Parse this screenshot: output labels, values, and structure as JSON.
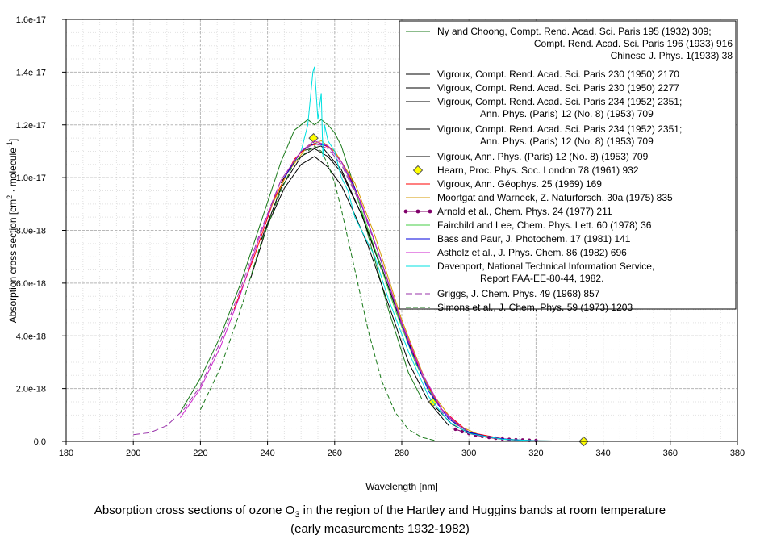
{
  "chart_data": {
    "type": "line",
    "xlabel": "Wavelength [nm]",
    "ylabel": {
      "base": "Absorption cross section [cm",
      "sup1": "2",
      "mid": " · molecule",
      "sup2": "-1",
      "end": "]"
    },
    "xlim": [
      180,
      380
    ],
    "ylim": [
      0,
      1.6e-17
    ],
    "x_ticks": [
      180,
      200,
      220,
      240,
      260,
      280,
      300,
      320,
      340,
      360,
      380
    ],
    "x_tick_labels": [
      "180",
      "200",
      "220",
      "240",
      "260",
      "280",
      "300",
      "320",
      "340",
      "360",
      "380"
    ],
    "y_ticks": [
      0,
      2e-18,
      4e-18,
      6e-18,
      8e-18,
      1e-17,
      1.2e-17,
      1.4e-17,
      1.6e-17
    ],
    "y_tick_labels": [
      "0.0",
      "2.0e-18",
      "4.0e-18",
      "6.0e-18",
      "8.0e-18",
      "1.0e-17",
      "1.2e-17",
      "1.4e-17",
      "1.6e-17"
    ],
    "grid": true,
    "legend_position": "top-right",
    "series": [
      {
        "name": "Ny and Choong",
        "legend": [
          "Ny and Choong, Compt. Rend. Acad. Sci. Paris 195 (1932) 309;",
          "Compt. Rend. Acad. Sci. Paris 196 (1933) 916",
          "Chinese J. Phys. 1(1933) 38"
        ],
        "color": "#1a7a1a",
        "dash": "",
        "marker": "none",
        "x": [
          214,
          220,
          226,
          232,
          238,
          244,
          248,
          252,
          254,
          256,
          258,
          260,
          262,
          266,
          270,
          276,
          282,
          286
        ],
        "y": [
          1.1e-18,
          2.4e-18,
          4e-18,
          6e-18,
          8.3e-18,
          1.06e-17,
          1.18e-17,
          1.22e-17,
          1.2e-17,
          1.22e-17,
          1.2e-17,
          1.17e-17,
          1.12e-17,
          9.6e-18,
          7.8e-18,
          5e-18,
          2.6e-18,
          1.6e-18
        ]
      },
      {
        "name": "Vigroux 1950a",
        "legend": [
          "Vigroux, Compt. Rend. Acad. Sci. Paris 230 (1950) 2170"
        ],
        "color": "#000000",
        "dash": "",
        "marker": "none",
        "x": [
          235,
          240,
          245,
          250,
          254,
          258,
          262,
          266,
          270,
          276,
          282,
          288,
          294
        ],
        "y": [
          6.2e-18,
          8.2e-18,
          9.6e-18,
          1.05e-17,
          1.08e-17,
          1.04e-17,
          9.7e-18,
          8.6e-18,
          7.4e-18,
          5.2e-18,
          3e-18,
          1.5e-18,
          6e-19
        ]
      },
      {
        "name": "Vigroux 1950b",
        "legend": [
          "Vigroux, Compt. Rend. Acad. Sci. Paris 230 (1950) 2277"
        ],
        "color": "#000000",
        "dash": "",
        "marker": "none",
        "x": [
          238,
          244,
          250,
          254,
          258,
          262,
          268,
          274,
          280,
          286,
          292,
          298
        ],
        "y": [
          7.6e-18,
          9.6e-18,
          1.08e-17,
          1.11e-17,
          1.08e-17,
          1.02e-17,
          8.6e-18,
          6.6e-18,
          4.4e-18,
          2.5e-18,
          1.2e-18,
          5e-19
        ]
      },
      {
        "name": "Vigroux 1952a",
        "legend": [
          "Vigroux, Compt. Rend. Acad. Sci. Paris 234 (1952) 2351;",
          "Ann. Phys. (Paris) 12 (No. 8) (1953) 709"
        ],
        "color": "#000000",
        "dash": "",
        "marker": "none",
        "x": [
          290,
          295,
          300,
          305,
          310,
          315,
          320
        ],
        "y": [
          1.3e-18,
          6.5e-19,
          3.2e-19,
          1.6e-19,
          8e-20,
          4e-20,
          2e-20
        ]
      },
      {
        "name": "Vigroux 1952b",
        "legend": [
          "Vigroux, Compt. Rend. Acad. Sci. Paris 234 (1952) 2351;",
          "Ann. Phys. (Paris) 12 (No. 8) (1953) 709"
        ],
        "color": "#000000",
        "dash": "",
        "marker": "none",
        "x": [
          244,
          250,
          256,
          262,
          268,
          274
        ],
        "y": [
          9.8e-18,
          1.1e-17,
          1.12e-17,
          1.03e-17,
          8.6e-18,
          6.5e-18
        ]
      },
      {
        "name": "Vigroux 1953",
        "legend": [
          "Vigroux, Ann. Phys. (Paris) 12 (No. 8) (1953) 709"
        ],
        "color": "#000000",
        "dash": "",
        "marker": "none",
        "x": [
          300,
          305,
          310,
          315,
          320,
          330,
          340,
          350
        ],
        "y": [
          3.2e-19,
          1.7e-19,
          9e-20,
          4.5e-20,
          2.3e-20,
          6e-21,
          1.5e-21,
          4e-22
        ]
      },
      {
        "name": "Hearn",
        "legend": [
          "Hearn, Proc. Phys. Soc. London 78 (1961) 932"
        ],
        "color": "#ffff00",
        "stroke": "#555555",
        "dash": "",
        "marker": "diamond",
        "line": false,
        "x": [
          253.7,
          289.4,
          334.2
        ],
        "y": [
          1.15e-17,
          1.5e-18,
          0
        ]
      },
      {
        "name": "Vigroux 1969",
        "legend": [
          "Vigroux, Ann. Géophys. 25 (1969) 169"
        ],
        "color": "#ff0000",
        "dash": "",
        "marker": "none",
        "x": [
          230,
          236,
          242,
          248,
          252,
          256,
          260,
          264,
          268,
          274,
          280,
          286,
          292,
          300,
          310
        ],
        "y": [
          5e-18,
          7e-18,
          9.2e-18,
          1.07e-17,
          1.12e-17,
          1.13e-17,
          1.1e-17,
          1.02e-17,
          9e-18,
          6.8e-18,
          4.5e-18,
          2.5e-18,
          1.2e-18,
          3.5e-19,
          1e-19
        ]
      },
      {
        "name": "Moortgat and Warneck",
        "legend": [
          "Moortgat and Warneck, Z. Naturforsch. 30a (1975) 835"
        ],
        "color": "#d49a00",
        "dash": "",
        "marker": "none",
        "x": [
          240,
          246,
          252,
          256,
          260,
          266,
          272,
          280,
          288,
          296,
          304
        ],
        "y": [
          8.6e-18,
          1.02e-17,
          1.12e-17,
          1.14e-17,
          1.1e-17,
          9.8e-18,
          7.8e-18,
          4.6e-18,
          2e-18,
          6.5e-19,
          2e-19
        ]
      },
      {
        "name": "Arnold et al.",
        "legend": [
          "Arnold et al., Chem. Phys. 24 (1977) 211"
        ],
        "color": "#80006a",
        "dash": "",
        "marker": "dot",
        "x": [
          296,
          298,
          300,
          302,
          304,
          306,
          308,
          310,
          312,
          314,
          316,
          318,
          320
        ],
        "y": [
          4.6e-19,
          3.7e-19,
          3e-19,
          2.4e-19,
          1.9e-19,
          1.5e-19,
          1.2e-19,
          9.5e-20,
          7.5e-20,
          6e-20,
          5e-20,
          4e-20,
          3.2e-20
        ]
      },
      {
        "name": "Fairchild and Lee",
        "legend": [
          "Fairchild and Lee, Chem. Phys. Lett. 60 (1978) 36"
        ],
        "color": "#44cc44",
        "dash": "",
        "marker": "none",
        "x": [
          250,
          254,
          258,
          262,
          266,
          272,
          278,
          284,
          290
        ],
        "y": [
          1.1e-17,
          1.14e-17,
          1.12e-17,
          1.06e-17,
          9.5e-18,
          7.3e-18,
          5e-18,
          3e-18,
          1.5e-18
        ]
      },
      {
        "name": "Bass and Paur",
        "legend": [
          "Bass and Paur, J. Photochem. 17 (1981) 141"
        ],
        "color": "#0000dd",
        "dash": "",
        "marker": "none",
        "x": [
          245,
          250,
          254,
          258,
          262,
          266,
          270,
          276,
          282,
          288,
          294,
          300,
          306,
          312,
          318
        ],
        "y": [
          1e-17,
          1.1e-17,
          1.13e-17,
          1.12e-17,
          1.06e-17,
          9.6e-18,
          8.3e-18,
          6e-18,
          3.7e-18,
          1.9e-18,
          8.5e-19,
          3.5e-19,
          1.6e-19,
          7e-20,
          3e-20
        ]
      },
      {
        "name": "Astholz et al.",
        "legend": [
          "Astholz et al., J. Phys. Chem. 86 (1982) 696"
        ],
        "color": "#cc22cc",
        "dash": "",
        "marker": "none",
        "x": [
          214,
          220,
          226,
          232,
          238,
          244,
          250,
          254,
          258,
          262,
          268,
          274,
          280,
          286,
          292,
          298
        ],
        "y": [
          9e-19,
          2e-18,
          3.6e-18,
          5.6e-18,
          7.9e-18,
          9.9e-18,
          1.1e-17,
          1.14e-17,
          1.12e-17,
          1.06e-17,
          9e-18,
          6.8e-18,
          4.5e-18,
          2.6e-18,
          1.2e-18,
          5e-19
        ]
      },
      {
        "name": "Davenport",
        "legend": [
          "Davenport, National Technical Information Service,",
          "Report FAA-EE-80-44, 1982."
        ],
        "color": "#00e0e0",
        "dash": "",
        "marker": "none",
        "x": [
          250,
          252,
          253.5,
          254,
          255,
          256,
          256.5,
          257,
          258,
          260,
          262,
          264,
          266,
          268,
          270,
          272,
          276,
          282,
          288,
          294,
          300,
          310,
          320,
          330,
          340,
          350,
          360,
          370
        ],
        "y": [
          1.1e-17,
          1.2e-17,
          1.4e-17,
          1.42e-17,
          1.22e-17,
          1.32e-17,
          1.08e-17,
          1.2e-17,
          1.14e-17,
          1.1e-17,
          1e-17,
          9.5e-18,
          8.5e-18,
          8e-18,
          7.5e-18,
          7e-18,
          5.4e-18,
          3.4e-18,
          1.7e-18,
          7.5e-19,
          3e-19,
          8e-20,
          2.5e-20,
          8e-21,
          3e-21,
          1e-21,
          4e-22,
          1e-22
        ]
      },
      {
        "name": "Griggs",
        "legend": [
          "Griggs, J. Chem. Phys. 49 (1968) 857"
        ],
        "color": "#9933aa",
        "dash": "8,4",
        "marker": "none",
        "x": [
          200,
          205,
          210,
          215,
          220,
          226,
          232,
          238,
          244,
          250,
          254,
          258,
          262,
          268,
          274,
          280,
          286,
          292,
          300
        ],
        "y": [
          2.5e-19,
          3.3e-19,
          6e-19,
          1.2e-18,
          2.1e-18,
          3.8e-18,
          5.8e-18,
          8e-18,
          9.9e-18,
          1.1e-17,
          1.13e-17,
          1.11e-17,
          1.05e-17,
          8.9e-18,
          6.8e-18,
          4.4e-18,
          2.5e-18,
          1.1e-18,
          3.5e-19
        ]
      },
      {
        "name": "Simons et al.",
        "legend": [
          "Simons et al., J. Chem. Phys. 59 (1973) 1203"
        ],
        "color": "#1a7a1a",
        "dash": "6,3",
        "marker": "none",
        "x": [
          220,
          226,
          232,
          238,
          244,
          248,
          252,
          254,
          256,
          258,
          260,
          262,
          266,
          270,
          274,
          278,
          282,
          286,
          290
        ],
        "y": [
          1.2e-18,
          2.8e-18,
          5e-18,
          7.5e-18,
          9.5e-18,
          1.06e-17,
          1.1e-17,
          1.12e-17,
          1.1e-17,
          1.05e-17,
          9.8e-18,
          8.8e-18,
          6.5e-18,
          4.2e-18,
          2.3e-18,
          1.1e-18,
          4.5e-19,
          1.5e-19,
          3e-20
        ]
      }
    ]
  },
  "caption": {
    "line1_pre": "Absorption cross sections of ozone O",
    "line1_sub": "3",
    "line1_post": " in the region of the Hartley and Huggins bands at room temperature",
    "line2": "(early measurements 1932-1982)"
  }
}
